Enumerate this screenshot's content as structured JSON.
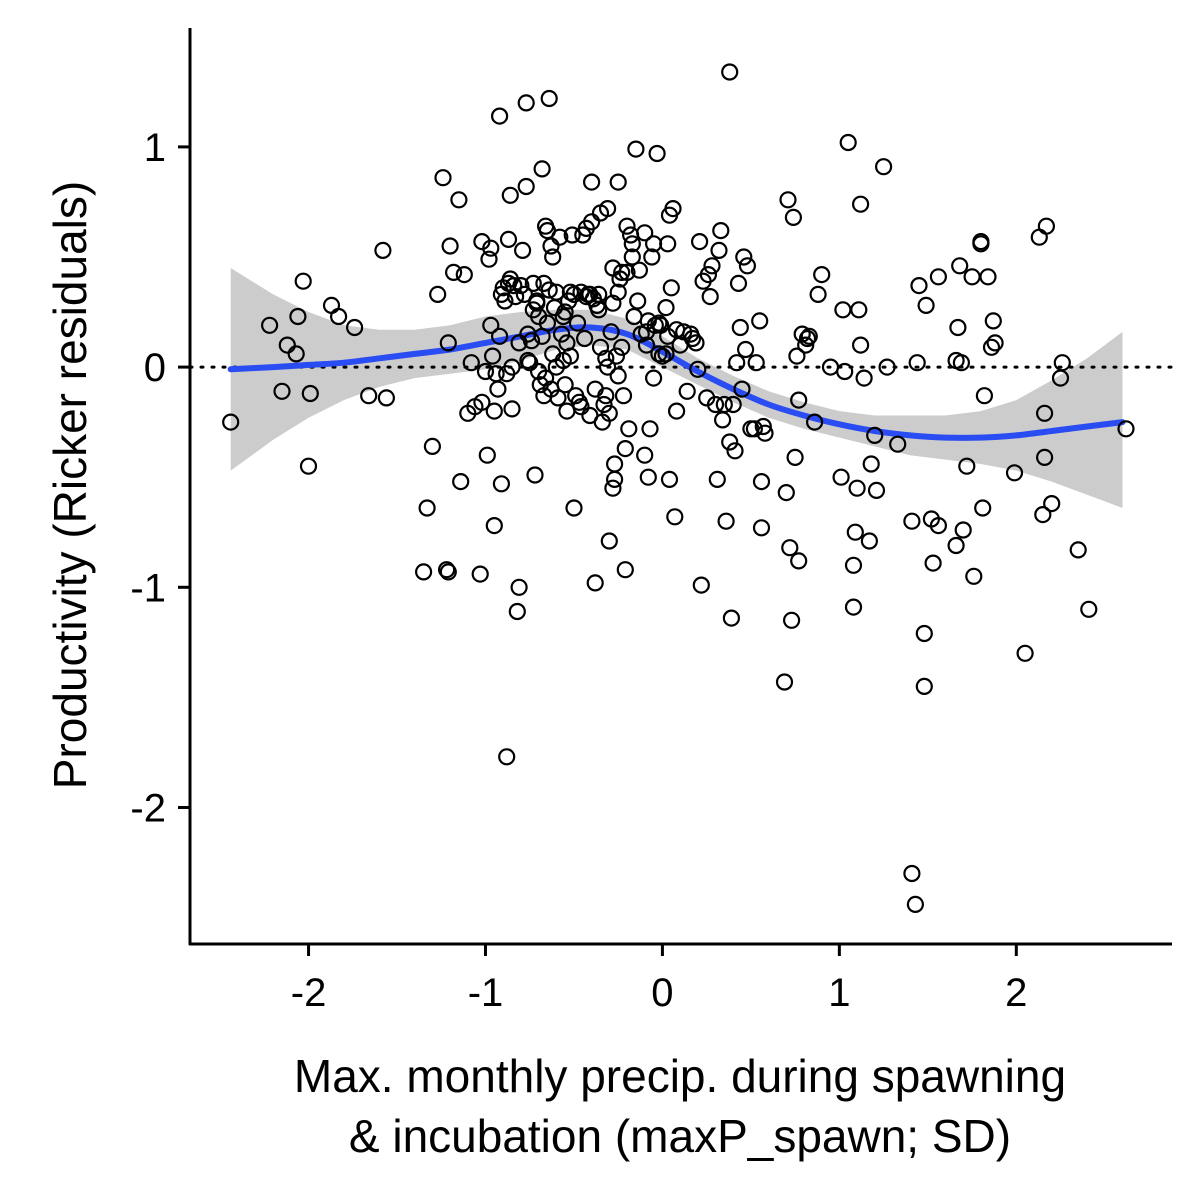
{
  "chart_data": {
    "type": "scatter",
    "xlabel_lines": [
      "Max. monthly precip. during spawning",
      "& incubation (maxP_spawn; SD)"
    ],
    "ylabel": "Productivity (Ricker residuals)",
    "xlim": [
      -2.67,
      2.88
    ],
    "ylim": [
      -2.62,
      1.54
    ],
    "x_ticks": [
      -2,
      -1,
      0,
      1,
      2
    ],
    "x_tick_labels": [
      "-2",
      "-1",
      "0",
      "1",
      "2"
    ],
    "y_ticks": [
      -2,
      -1,
      0,
      1
    ],
    "y_tick_labels": [
      "-2",
      "-1",
      "0",
      "1"
    ],
    "reference_line": {
      "y": 0,
      "style": "dotted",
      "color": "#000000"
    },
    "grid": false,
    "colors": {
      "smooth": "#2a4cf3",
      "band": "#cccccc",
      "points": "#000000"
    },
    "smooth": {
      "x": [
        -2.44,
        -2.2,
        -2.0,
        -1.8,
        -1.6,
        -1.4,
        -1.2,
        -1.0,
        -0.8,
        -0.6,
        -0.4,
        -0.2,
        0.0,
        0.2,
        0.4,
        0.6,
        0.8,
        1.0,
        1.2,
        1.4,
        1.6,
        1.8,
        2.0,
        2.2,
        2.4,
        2.6
      ],
      "y": [
        -0.01,
        0.0,
        0.01,
        0.02,
        0.04,
        0.06,
        0.08,
        0.11,
        0.14,
        0.17,
        0.18,
        0.15,
        0.07,
        -0.02,
        -0.1,
        -0.17,
        -0.22,
        -0.26,
        -0.29,
        -0.31,
        -0.32,
        -0.32,
        -0.31,
        -0.29,
        -0.27,
        -0.25
      ],
      "ymin": [
        -0.47,
        -0.33,
        -0.23,
        -0.15,
        -0.09,
        -0.05,
        -0.03,
        -0.01,
        0.03,
        0.08,
        0.1,
        0.08,
        0.0,
        -0.08,
        -0.16,
        -0.23,
        -0.28,
        -0.32,
        -0.36,
        -0.4,
        -0.42,
        -0.44,
        -0.47,
        -0.52,
        -0.58,
        -0.64
      ],
      "ymax": [
        0.45,
        0.33,
        0.25,
        0.19,
        0.17,
        0.17,
        0.19,
        0.23,
        0.25,
        0.26,
        0.26,
        0.22,
        0.14,
        0.04,
        -0.04,
        -0.11,
        -0.16,
        -0.2,
        -0.22,
        -0.22,
        -0.22,
        -0.2,
        -0.15,
        -0.06,
        0.04,
        0.16
      ]
    },
    "points": [
      [
        -2.44,
        -0.25
      ],
      [
        -2.22,
        0.19
      ],
      [
        -2.15,
        -0.11
      ],
      [
        -2.12,
        0.1
      ],
      [
        -2.07,
        0.06
      ],
      [
        -2.06,
        0.23
      ],
      [
        -2.03,
        0.39
      ],
      [
        -2.0,
        -0.45
      ],
      [
        -1.99,
        -0.12
      ],
      [
        -1.87,
        0.28
      ],
      [
        -1.83,
        0.23
      ],
      [
        -1.74,
        0.18
      ],
      [
        -1.66,
        -0.13
      ],
      [
        -1.58,
        0.53
      ],
      [
        -1.56,
        -0.14
      ],
      [
        -1.35,
        -0.93
      ],
      [
        -1.33,
        -0.64
      ],
      [
        -1.3,
        -0.36
      ],
      [
        -1.27,
        0.33
      ],
      [
        -1.24,
        0.86
      ],
      [
        -1.22,
        -0.92
      ],
      [
        -1.21,
        0.11
      ],
      [
        -1.21,
        -0.93
      ],
      [
        -1.2,
        0.55
      ],
      [
        -1.18,
        0.43
      ],
      [
        -1.15,
        0.76
      ],
      [
        -1.14,
        -0.52
      ],
      [
        -1.12,
        0.42
      ],
      [
        -1.1,
        -0.21
      ],
      [
        -1.08,
        0.02
      ],
      [
        -1.06,
        -0.18
      ],
      [
        -1.03,
        -0.94
      ],
      [
        -1.02,
        0.57
      ],
      [
        -1.02,
        -0.16
      ],
      [
        -1.0,
        -0.02
      ],
      [
        -0.99,
        -0.4
      ],
      [
        -0.98,
        0.49
      ],
      [
        -0.97,
        0.54
      ],
      [
        -0.97,
        0.19
      ],
      [
        -0.96,
        0.05
      ],
      [
        -0.95,
        -0.2
      ],
      [
        -0.95,
        -0.72
      ],
      [
        -0.94,
        -0.03
      ],
      [
        -0.93,
        -0.1
      ],
      [
        -0.92,
        1.14
      ],
      [
        -0.92,
        0.14
      ],
      [
        -0.91,
        -0.53
      ],
      [
        -0.91,
        0.33
      ],
      [
        -0.9,
        0.36
      ],
      [
        -0.89,
        0.3
      ],
      [
        -0.88,
        -0.03
      ],
      [
        -0.88,
        -1.77
      ],
      [
        -0.87,
        0.38
      ],
      [
        -0.87,
        0.58
      ],
      [
        -0.86,
        0.78
      ],
      [
        -0.86,
        0.4
      ],
      [
        -0.85,
        0.0
      ],
      [
        -0.85,
        -0.19
      ],
      [
        -0.84,
        0.37
      ],
      [
        -0.83,
        0.32
      ],
      [
        -0.82,
        -1.11
      ],
      [
        -0.81,
        -1.0
      ],
      [
        -0.81,
        0.11
      ],
      [
        -0.8,
        0.37
      ],
      [
        -0.79,
        0.53
      ],
      [
        -0.78,
        0.33
      ],
      [
        -0.77,
        0.82
      ],
      [
        -0.77,
        1.2
      ],
      [
        -0.76,
        0.15
      ],
      [
        -0.76,
        0.03
      ],
      [
        -0.75,
        0.02
      ],
      [
        -0.74,
        0.12
      ],
      [
        -0.73,
        0.26
      ],
      [
        -0.73,
        0.38
      ],
      [
        -0.72,
        -0.49
      ],
      [
        -0.71,
        0.29
      ],
      [
        -0.71,
        0.3
      ],
      [
        -0.7,
        -0.02
      ],
      [
        -0.7,
        0.23
      ],
      [
        -0.69,
        -0.08
      ],
      [
        -0.68,
        0.9
      ],
      [
        -0.68,
        0.14
      ],
      [
        -0.67,
        -0.13
      ],
      [
        -0.67,
        0.38
      ],
      [
        -0.66,
        0.64
      ],
      [
        -0.66,
        -0.05
      ],
      [
        -0.65,
        0.62
      ],
      [
        -0.65,
        0.2
      ],
      [
        -0.64,
        1.22
      ],
      [
        -0.64,
        0.35
      ],
      [
        -0.63,
        -0.1
      ],
      [
        -0.63,
        0.55
      ],
      [
        -0.62,
        0.5
      ],
      [
        -0.62,
        0.06
      ],
      [
        -0.61,
        0.27
      ],
      [
        -0.6,
        0.34
      ],
      [
        -0.6,
        0.0
      ],
      [
        -0.59,
        -0.14
      ],
      [
        -0.58,
        0.59
      ],
      [
        -0.57,
        0.15
      ],
      [
        -0.56,
        0.23
      ],
      [
        -0.56,
        0.03
      ],
      [
        -0.55,
        -0.08
      ],
      [
        -0.55,
        0.25
      ],
      [
        -0.54,
        -0.2
      ],
      [
        -0.54,
        0.11
      ],
      [
        -0.53,
        0.3
      ],
      [
        -0.52,
        0.34
      ],
      [
        -0.52,
        0.05
      ],
      [
        -0.51,
        0.6
      ],
      [
        -0.5,
        0.33
      ],
      [
        -0.5,
        -0.64
      ],
      [
        -0.49,
        -0.13
      ],
      [
        -0.48,
        0.2
      ],
      [
        -0.47,
        -0.16
      ],
      [
        -0.46,
        0.34
      ],
      [
        -0.46,
        -0.18
      ],
      [
        -0.45,
        0.6
      ],
      [
        -0.44,
        0.13
      ],
      [
        -0.43,
        0.32
      ],
      [
        -0.43,
        0.63
      ],
      [
        -0.42,
        0.33
      ],
      [
        -0.41,
        -0.22
      ],
      [
        -0.41,
        0.33
      ],
      [
        -0.4,
        0.84
      ],
      [
        -0.4,
        0.66
      ],
      [
        -0.39,
        0.31
      ],
      [
        -0.38,
        -0.98
      ],
      [
        -0.38,
        -0.1
      ],
      [
        -0.37,
        0.28
      ],
      [
        -0.36,
        0.26
      ],
      [
        -0.36,
        0.33
      ],
      [
        -0.35,
        0.7
      ],
      [
        -0.35,
        0.09
      ],
      [
        -0.34,
        -0.25
      ],
      [
        -0.33,
        -0.17
      ],
      [
        -0.32,
        0.04
      ],
      [
        -0.32,
        -0.13
      ],
      [
        -0.31,
        0.0
      ],
      [
        -0.31,
        0.72
      ],
      [
        -0.3,
        -0.21
      ],
      [
        -0.3,
        -0.79
      ],
      [
        -0.29,
        0.16
      ],
      [
        -0.28,
        0.29
      ],
      [
        -0.28,
        -0.55
      ],
      [
        -0.28,
        0.45
      ],
      [
        -0.27,
        -0.51
      ],
      [
        -0.27,
        -0.44
      ],
      [
        -0.26,
        0.05
      ],
      [
        -0.25,
        -0.04
      ],
      [
        -0.25,
        0.34
      ],
      [
        -0.25,
        0.84
      ],
      [
        -0.24,
        0.4
      ],
      [
        -0.23,
        0.09
      ],
      [
        -0.23,
        0.43
      ],
      [
        -0.22,
        -0.13
      ],
      [
        -0.21,
        -0.92
      ],
      [
        -0.21,
        -0.37
      ],
      [
        -0.2,
        0.43
      ],
      [
        -0.2,
        0.64
      ],
      [
        -0.19,
        -0.28
      ],
      [
        -0.18,
        0.6
      ],
      [
        -0.17,
        0.5
      ],
      [
        -0.17,
        0.56
      ],
      [
        -0.16,
        0.23
      ],
      [
        -0.15,
        0.99
      ],
      [
        -0.14,
        0.3
      ],
      [
        -0.13,
        0.44
      ],
      [
        -0.12,
        0.15
      ],
      [
        -0.1,
        -0.4
      ],
      [
        -0.1,
        0.61
      ],
      [
        -0.09,
        0.1
      ],
      [
        -0.09,
        0.16
      ],
      [
        -0.08,
        -0.5
      ],
      [
        -0.08,
        0.21
      ],
      [
        -0.07,
        -0.28
      ],
      [
        -0.06,
        0.5
      ],
      [
        -0.05,
        0.56
      ],
      [
        -0.05,
        -0.05
      ],
      [
        -0.04,
        0.19
      ],
      [
        -0.03,
        0.97
      ],
      [
        -0.02,
        0.2
      ],
      [
        -0.02,
        0.06
      ],
      [
        -0.01,
        0.19
      ],
      [
        0.0,
        0.05
      ],
      [
        0.02,
        0.06
      ],
      [
        0.02,
        0.27
      ],
      [
        0.03,
        0.14
      ],
      [
        0.03,
        0.56
      ],
      [
        0.04,
        0.69
      ],
      [
        0.04,
        -0.51
      ],
      [
        0.05,
        0.36
      ],
      [
        0.06,
        0.72
      ],
      [
        0.07,
        -0.68
      ],
      [
        0.08,
        0.17
      ],
      [
        0.08,
        -0.2
      ],
      [
        0.1,
        0.1
      ],
      [
        0.12,
        0.16
      ],
      [
        0.14,
        -0.11
      ],
      [
        0.16,
        0.15
      ],
      [
        0.17,
        0.13
      ],
      [
        0.19,
        0.11
      ],
      [
        0.2,
        -0.01
      ],
      [
        0.21,
        0.57
      ],
      [
        0.22,
        -0.99
      ],
      [
        0.23,
        0.39
      ],
      [
        0.25,
        -0.14
      ],
      [
        0.26,
        0.42
      ],
      [
        0.27,
        0.32
      ],
      [
        0.28,
        0.46
      ],
      [
        0.3,
        -0.17
      ],
      [
        0.31,
        -0.51
      ],
      [
        0.32,
        0.53
      ],
      [
        0.33,
        0.62
      ],
      [
        0.34,
        -0.24
      ],
      [
        0.35,
        -0.17
      ],
      [
        0.36,
        -0.7
      ],
      [
        0.38,
        -0.34
      ],
      [
        0.38,
        1.34
      ],
      [
        0.39,
        -1.14
      ],
      [
        0.4,
        -0.17
      ],
      [
        0.41,
        -0.38
      ],
      [
        0.42,
        0.02
      ],
      [
        0.43,
        0.38
      ],
      [
        0.44,
        0.18
      ],
      [
        0.45,
        -0.1
      ],
      [
        0.46,
        0.5
      ],
      [
        0.47,
        0.08
      ],
      [
        0.48,
        0.46
      ],
      [
        0.5,
        -0.28
      ],
      [
        0.52,
        -0.28
      ],
      [
        0.53,
        0.02
      ],
      [
        0.55,
        0.21
      ],
      [
        0.56,
        -0.52
      ],
      [
        0.56,
        -0.73
      ],
      [
        0.57,
        -0.27
      ],
      [
        0.58,
        -0.3
      ],
      [
        0.69,
        -1.43
      ],
      [
        0.7,
        -0.57
      ],
      [
        0.71,
        0.76
      ],
      [
        0.72,
        -0.82
      ],
      [
        0.73,
        -1.15
      ],
      [
        0.74,
        0.68
      ],
      [
        0.75,
        -0.41
      ],
      [
        0.76,
        0.05
      ],
      [
        0.77,
        -0.88
      ],
      [
        0.77,
        -0.15
      ],
      [
        0.79,
        0.15
      ],
      [
        0.81,
        0.1
      ],
      [
        0.82,
        0.13
      ],
      [
        0.83,
        0.14
      ],
      [
        0.86,
        -0.25
      ],
      [
        0.88,
        0.33
      ],
      [
        0.9,
        0.42
      ],
      [
        0.95,
        0.0
      ],
      [
        1.01,
        -0.5
      ],
      [
        1.02,
        0.26
      ],
      [
        1.03,
        -0.02
      ],
      [
        1.05,
        1.02
      ],
      [
        1.08,
        -0.9
      ],
      [
        1.08,
        -1.09
      ],
      [
        1.09,
        -0.75
      ],
      [
        1.1,
        -0.55
      ],
      [
        1.11,
        0.26
      ],
      [
        1.12,
        0.74
      ],
      [
        1.12,
        0.1
      ],
      [
        1.14,
        -0.05
      ],
      [
        1.17,
        -0.79
      ],
      [
        1.18,
        -0.44
      ],
      [
        1.2,
        -0.31
      ],
      [
        1.21,
        -0.56
      ],
      [
        1.25,
        0.91
      ],
      [
        1.27,
        0.0
      ],
      [
        1.33,
        -0.35
      ],
      [
        1.41,
        -0.7
      ],
      [
        1.41,
        -2.3
      ],
      [
        1.43,
        -2.44
      ],
      [
        1.44,
        0.02
      ],
      [
        1.45,
        0.37
      ],
      [
        1.48,
        -1.45
      ],
      [
        1.48,
        -1.21
      ],
      [
        1.49,
        0.28
      ],
      [
        1.52,
        -0.69
      ],
      [
        1.53,
        -0.89
      ],
      [
        1.56,
        0.41
      ],
      [
        1.56,
        -0.72
      ],
      [
        1.66,
        -0.81
      ],
      [
        1.66,
        0.03
      ],
      [
        1.67,
        0.18
      ],
      [
        1.68,
        0.46
      ],
      [
        1.69,
        0.02
      ],
      [
        1.7,
        -0.74
      ],
      [
        1.72,
        -0.45
      ],
      [
        1.75,
        0.41
      ],
      [
        1.76,
        -0.95
      ],
      [
        1.8,
        0.57
      ],
      [
        1.8,
        0.56
      ],
      [
        1.81,
        -0.64
      ],
      [
        1.82,
        -0.13
      ],
      [
        1.84,
        0.41
      ],
      [
        1.86,
        0.09
      ],
      [
        1.87,
        0.21
      ],
      [
        1.88,
        0.11
      ],
      [
        1.99,
        -0.48
      ],
      [
        2.05,
        -1.3
      ],
      [
        2.13,
        0.59
      ],
      [
        2.15,
        -0.67
      ],
      [
        2.16,
        -0.41
      ],
      [
        2.16,
        -0.21
      ],
      [
        2.17,
        0.64
      ],
      [
        2.2,
        -0.62
      ],
      [
        2.25,
        -0.05
      ],
      [
        2.26,
        0.02
      ],
      [
        2.35,
        -0.83
      ],
      [
        2.41,
        -1.1
      ],
      [
        2.62,
        -0.28
      ]
    ]
  }
}
